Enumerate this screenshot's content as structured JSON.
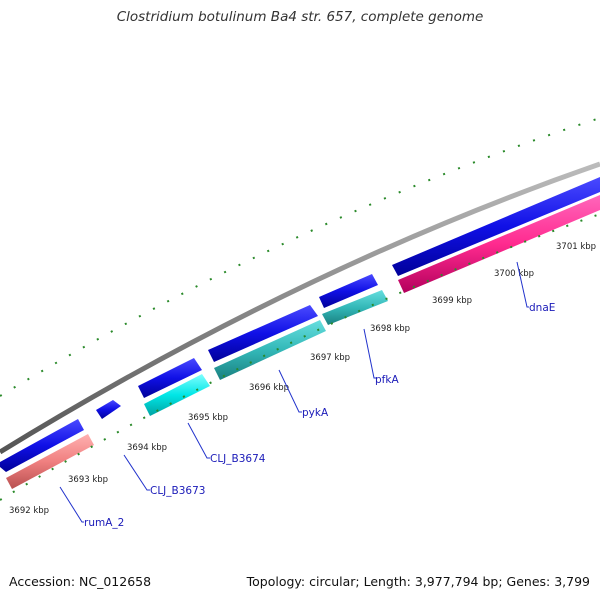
{
  "title": "Clostridium botulinum Ba4 str. 657, complete genome",
  "footer": {
    "accession": "Accession: NC_012658",
    "topology": "Topology: circular; Length: 3,977,794 bp; Genes: 3,799"
  },
  "kbp_labels": [
    "3692 kbp",
    "3693 kbp",
    "3694 kbp",
    "3695 kbp",
    "3696 kbp",
    "3697 kbp",
    "3698 kbp",
    "3699 kbp",
    "3700 kbp",
    "3701 kbp"
  ],
  "gene_labels": [
    "rumA_2",
    "CLJ_B3673",
    "CLJ_B3674",
    "pykA",
    "pfkA",
    "dnaE"
  ],
  "colors": {
    "backbone": "#8c8c8c",
    "cds_forward": "#1010e6",
    "cds_reverse": "#ff3399",
    "cog_cyan": "#00e6e6",
    "cog_teal": "#33cccc",
    "cog_salmon": "#f08080",
    "ticks": "#2a8a2a",
    "label_line": "#2233cc"
  }
}
